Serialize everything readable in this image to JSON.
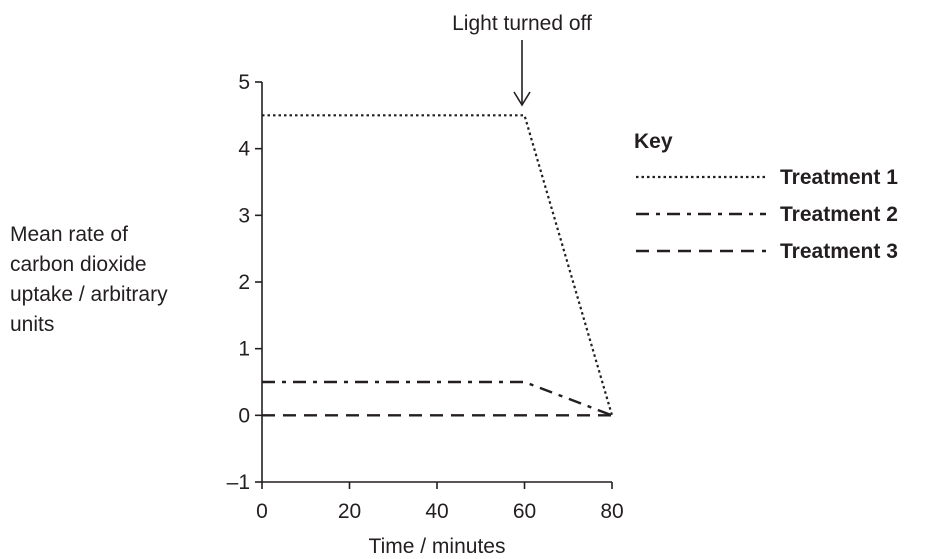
{
  "chart_data": {
    "type": "line",
    "title": "",
    "xlabel": "Time / minutes",
    "ylabel_lines": [
      "Mean rate of",
      "carbon dioxide",
      "uptake / arbitrary",
      "units"
    ],
    "xlim": [
      0,
      80
    ],
    "ylim": [
      -1,
      5
    ],
    "x_ticks": [
      0,
      20,
      40,
      60,
      80
    ],
    "y_ticks": [
      -1,
      0,
      1,
      2,
      3,
      4,
      5
    ],
    "x_tick_labels": [
      "0",
      "20",
      "40",
      "60",
      "80"
    ],
    "y_tick_labels": [
      "–1",
      "0",
      "1",
      "2",
      "3",
      "4",
      "5"
    ],
    "grid": false,
    "legend": {
      "title": "Key",
      "placement": "right"
    },
    "annotation": {
      "text": "Light turned off",
      "x": 60,
      "y": 4.5
    },
    "series": [
      {
        "name": "Treatment 1",
        "style": "dotted",
        "x": [
          0,
          60,
          80
        ],
        "y": [
          4.5,
          4.5,
          0
        ]
      },
      {
        "name": "Treatment 2",
        "style": "dash-dot",
        "x": [
          0,
          60,
          80
        ],
        "y": [
          0.5,
          0.5,
          0
        ]
      },
      {
        "name": "Treatment 3",
        "style": "dashed",
        "x": [
          0,
          80
        ],
        "y": [
          0,
          0
        ]
      }
    ],
    "colors": {
      "ink": "#231f20"
    }
  }
}
